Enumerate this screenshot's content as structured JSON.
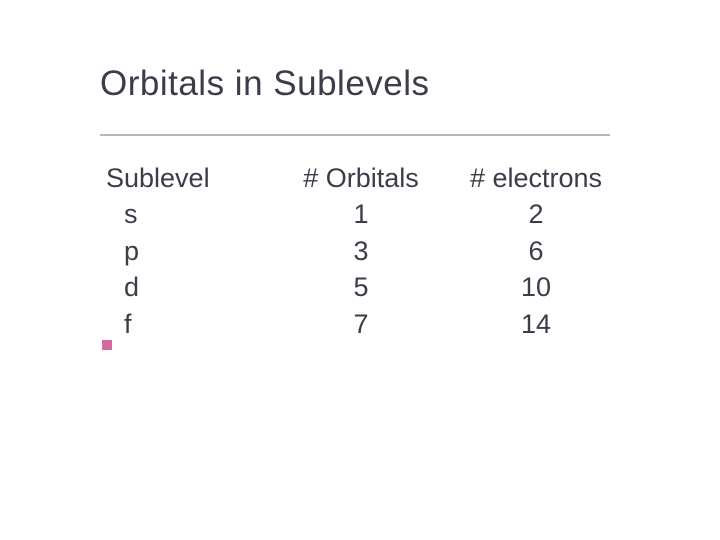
{
  "slide": {
    "title": "Orbitals in Sublevels",
    "underline_color": "#b8b8b8",
    "text_color": "#3c3c4a",
    "bullet_color": "#d46aa0",
    "background_color": "#ffffff",
    "title_fontsize": 35,
    "body_fontsize": 27
  },
  "table": {
    "type": "table",
    "columns": [
      "Sublevel",
      "# Orbitals",
      "# electrons"
    ],
    "rows": [
      [
        "s",
        "1",
        "2"
      ],
      [
        "p",
        "3",
        "6"
      ],
      [
        "d",
        "5",
        "10"
      ],
      [
        "f",
        "7",
        "14"
      ]
    ]
  }
}
